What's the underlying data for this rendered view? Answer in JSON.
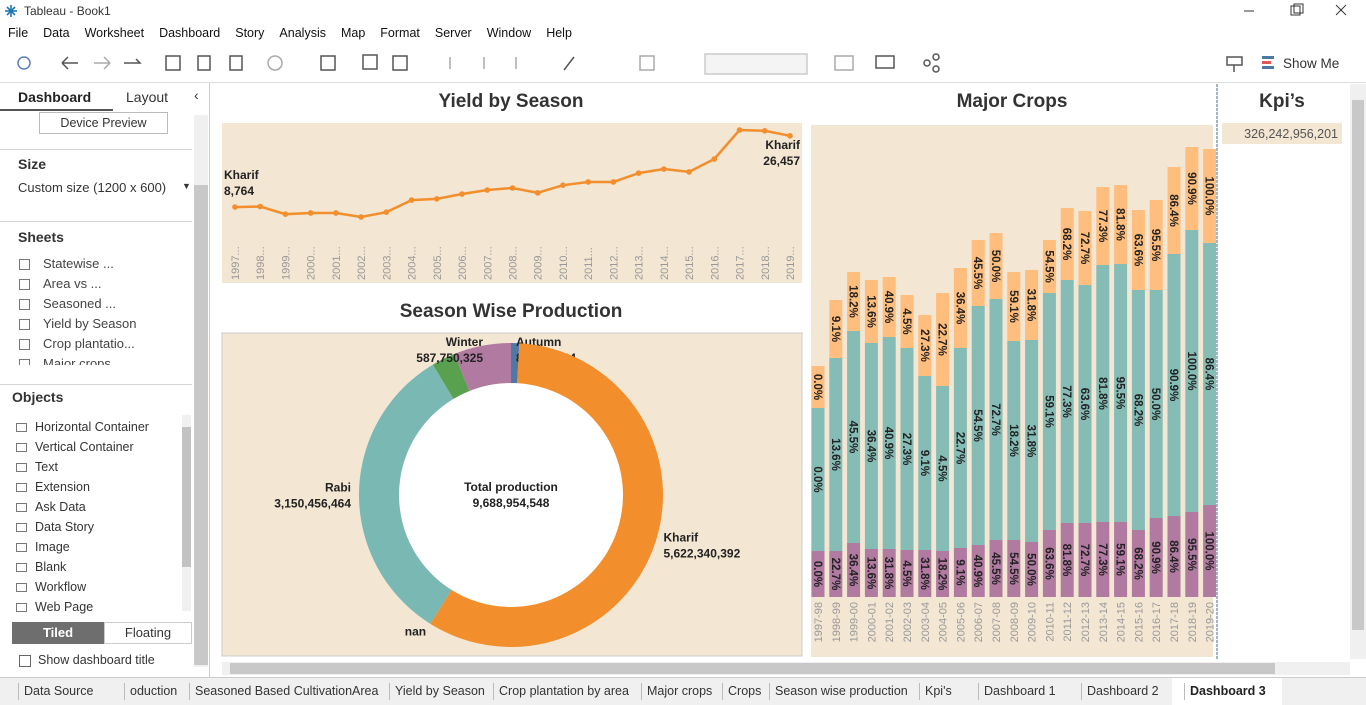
{
  "window": {
    "title": "Tableau - Book1"
  },
  "menu": [
    "File",
    "Data",
    "Worksheet",
    "Dashboard",
    "Story",
    "Analysis",
    "Map",
    "Format",
    "Server",
    "Window",
    "Help"
  ],
  "toolbar": {
    "show_me": "Show Me"
  },
  "side_panel": {
    "tabs": [
      "Dashboard",
      "Layout"
    ],
    "device_preview": "Device Preview",
    "size_heading": "Size",
    "size_value": "Custom size (1200 x 600)",
    "sheets_heading": "Sheets",
    "sheets": [
      "Statewise ...",
      "Area vs ...",
      "Seasoned ...",
      "Yield by Season",
      "Crop plantatio...",
      "Major crops"
    ],
    "objects_heading": "Objects",
    "objects": [
      "Horizontal Container",
      "Vertical Container",
      "Text",
      "Extension",
      "Ask Data",
      "Data Story",
      "Image",
      "Blank",
      "Workflow",
      "Web Page"
    ],
    "layout_modes": [
      "Tiled",
      "Floating"
    ],
    "show_title": "Show dashboard title"
  },
  "chart_data": [
    {
      "type": "line",
      "title": "Yield by Season",
      "categories": [
        "1997...",
        "1998...",
        "1999...",
        "2000...",
        "2001...",
        "2002...",
        "2003...",
        "2004...",
        "2005...",
        "2006...",
        "2007...",
        "2008...",
        "2009...",
        "2010...",
        "2011...",
        "2012...",
        "2013...",
        "2014...",
        "2015...",
        "2016...",
        "2017...",
        "2018...",
        "2019..."
      ],
      "series": [
        {
          "name": "Kharif",
          "color": "#f28e2b",
          "values": [
            8764,
            8900,
            7000,
            7300,
            7300,
            6300,
            7500,
            10500,
            10800,
            12000,
            13000,
            13500,
            12300,
            14200,
            15000,
            15000,
            17200,
            18200,
            17500,
            20700,
            27900,
            27700,
            26457
          ],
          "value_labels": [
            "8,764",
            null,
            null,
            null,
            null,
            null,
            null,
            null,
            null,
            null,
            null,
            null,
            null,
            null,
            null,
            null,
            null,
            null,
            null,
            null,
            null,
            null,
            "26,457"
          ]
        }
      ]
    },
    {
      "type": "donut",
      "title": "Season Wise Production",
      "center_label": "Total production",
      "total": {
        "value": 9688954548,
        "label": "9,688,954,548"
      },
      "categories": [
        "Autumn",
        "Kharif",
        "nan",
        "Rabi",
        null,
        "Winter"
      ],
      "values": [
        84641434,
        5622340392,
        0,
        3150456464,
        243765933,
        587750325
      ],
      "value_labels": [
        "84,641,434",
        "5,622,340,392",
        null,
        "3,150,456,464",
        null,
        "587,750,325"
      ],
      "colors": [
        "#4e79a7",
        "#f28e2b",
        "#f28e2b",
        "#7ab8b3",
        "#59a14f",
        "#b07aa1"
      ]
    },
    {
      "type": "stacked-bar",
      "title": "Major Crops",
      "categories": [
        "1997-98",
        "1998-99",
        "1999-00",
        "2000-01",
        "2001-02",
        "2002-03",
        "2003-04",
        "2004-05",
        "2005-06",
        "2006-07",
        "2007-08",
        "2008-09",
        "2009-10",
        "2010-11",
        "2011-12",
        "2012-13",
        "2013-14",
        "2014-15",
        "2015-16",
        "2016-17",
        "2017-18",
        "2018-19",
        "2019-20"
      ],
      "series": [
        {
          "color": "#b07aa1",
          "values": [
            46,
            46,
            54,
            48,
            48,
            47,
            47,
            46,
            49,
            52,
            57,
            57,
            55,
            67,
            74,
            74,
            75,
            75,
            67,
            79,
            81,
            85,
            92
          ],
          "labels": [
            "0.0%",
            "22.7%",
            "36.4%",
            "13.6%",
            "31.8%",
            "4.5%",
            "31.8%",
            "18.2%",
            "9.1%",
            "40.9%",
            "45.5%",
            "54.5%",
            "50.0%",
            "63.6%",
            "81.8%",
            "72.7%",
            "77.3%",
            "59.1%",
            "68.2%",
            "90.9%",
            "86.4%",
            "95.5%",
            "100.0%"
          ]
        },
        {
          "color": "#86bcb6",
          "values": [
            143,
            193,
            212,
            206,
            212,
            202,
            174,
            165,
            200,
            239,
            241,
            199,
            202,
            237,
            243,
            238,
            257,
            258,
            240,
            228,
            262,
            282,
            262
          ],
          "labels": [
            "0.0%",
            "13.6%",
            "45.5%",
            "36.4%",
            "40.9%",
            "27.3%",
            "9.1%",
            "4.5%",
            "22.7%",
            "54.5%",
            "72.7%",
            "18.2%",
            "31.8%",
            "59.1%",
            "77.3%",
            "63.6%",
            "81.8%",
            "95.5%",
            "68.2%",
            "50.0%",
            "90.9%",
            "100.0%",
            "86.4%"
          ]
        },
        {
          "color": "#ffbe7d",
          "values": [
            42,
            58,
            59,
            63,
            60,
            53,
            61,
            93,
            80,
            66,
            66,
            69,
            70,
            53,
            72,
            74,
            78,
            79,
            80,
            90,
            87,
            83,
            94
          ],
          "labels": [
            "0.0%",
            "9.1%",
            "18.2%",
            "13.6%",
            "40.9%",
            "4.5%",
            "27.3%",
            "22.7%",
            "36.4%",
            "45.5%",
            "50.0%",
            "59.1%",
            "31.8%",
            "54.5%",
            "68.2%",
            "72.7%",
            "77.3%",
            "81.8%",
            "63.6%",
            "95.5%",
            "86.4%",
            "90.9%",
            "100.0%"
          ]
        }
      ]
    }
  ],
  "kpi": {
    "title": "Kpi’s",
    "value": "326,242,956,201"
  },
  "sheet_tabs": [
    "Data Source",
    "oduction",
    "Seasoned Based CultivationArea",
    "Yield by Season",
    "Crop plantation by area",
    "Major crops",
    "Crops",
    "Season wise production",
    "Kpi's",
    "Dashboard 1",
    "Dashboard 2",
    "Dashboard 3"
  ]
}
